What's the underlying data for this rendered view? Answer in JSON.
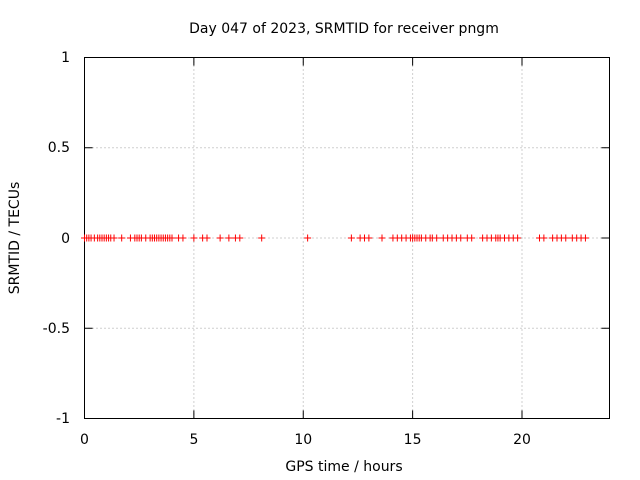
{
  "chart_data": {
    "type": "scatter",
    "title": "Day 047 of 2023, SRMTID for receiver pngm",
    "xlabel": "GPS time / hours",
    "ylabel": "SRMTID / TECUs",
    "xlim": [
      0,
      24
    ],
    "ylim": [
      -1,
      1
    ],
    "x_ticks": [
      0,
      5,
      10,
      15,
      20
    ],
    "y_ticks": [
      -1,
      -0.5,
      0,
      0.5,
      1
    ],
    "x_tick_labels": [
      "0",
      "5",
      "10",
      "15",
      "20"
    ],
    "y_tick_labels": [
      "-1",
      "-0.5",
      "0",
      "0.5",
      "1"
    ],
    "grid": true,
    "marker": "plus",
    "marker_color": "#ff0000",
    "series": [
      {
        "values_y": 0,
        "x": [
          0.0,
          0.1,
          0.2,
          0.3,
          0.45,
          0.6,
          0.7,
          0.8,
          0.9,
          1.0,
          1.1,
          1.2,
          1.35,
          1.7,
          2.1,
          2.3,
          2.4,
          2.5,
          2.6,
          2.8,
          3.0,
          3.1,
          3.2,
          3.3,
          3.4,
          3.5,
          3.6,
          3.7,
          3.8,
          3.9,
          4.0,
          4.3,
          4.5,
          5.0,
          5.4,
          5.6,
          6.2,
          6.6,
          6.9,
          7.1,
          8.1,
          10.2,
          12.2,
          12.6,
          12.8,
          13.0,
          13.6,
          14.1,
          14.3,
          14.5,
          14.7,
          14.9,
          15.0,
          15.1,
          15.2,
          15.3,
          15.4,
          15.6,
          15.8,
          15.9,
          16.1,
          16.4,
          16.6,
          16.8,
          17.0,
          17.2,
          17.5,
          17.7,
          18.2,
          18.4,
          18.6,
          18.8,
          18.9,
          19.0,
          19.2,
          19.4,
          19.6,
          19.8,
          20.8,
          21.0,
          21.4,
          21.6,
          21.8,
          22.0,
          22.3,
          22.5,
          22.7,
          22.9
        ]
      }
    ]
  }
}
